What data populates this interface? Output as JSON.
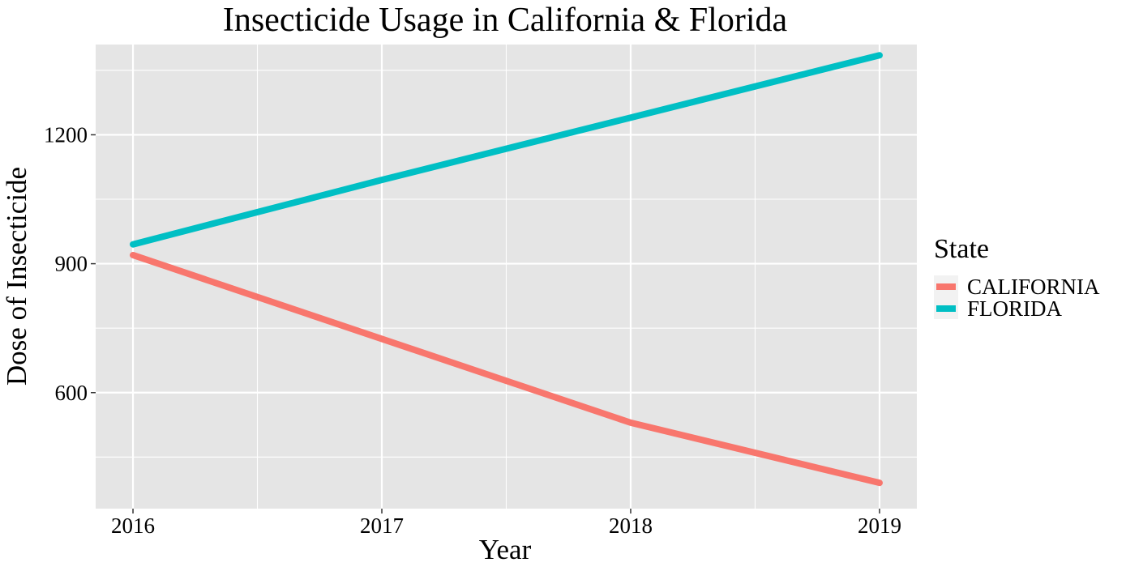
{
  "chart_data": {
    "type": "line",
    "title": "Insecticide Usage in California & Florida",
    "xlabel": "Year",
    "ylabel": "Dose of Insecticide",
    "x": [
      2016,
      2017,
      2018,
      2019
    ],
    "x_tick_labels": [
      "2016",
      "2017",
      "2018",
      "2019"
    ],
    "y_ticks": [
      600,
      900,
      1200
    ],
    "y_tick_labels": [
      "600",
      "900",
      "1200"
    ],
    "xlim": [
      2015.85,
      2019.15
    ],
    "ylim": [
      330,
      1410
    ],
    "grid": true,
    "legend": {
      "title": "State",
      "position": "right"
    },
    "series": [
      {
        "name": "CALIFORNIA",
        "color": "#F8766D",
        "values": [
          920,
          725,
          530,
          390
        ]
      },
      {
        "name": "FLORIDA",
        "color": "#00BFC4",
        "values": [
          945,
          1095,
          1240,
          1385
        ]
      }
    ],
    "panel_background": "#E5E5E5",
    "grid_color": "#FFFFFF"
  }
}
